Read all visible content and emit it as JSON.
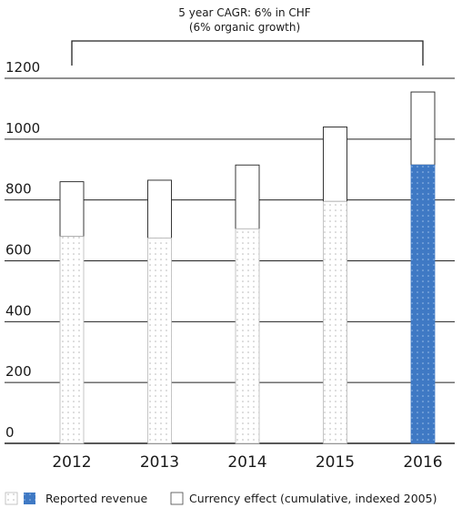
{
  "chart_data": {
    "type": "bar",
    "categories": [
      "2012",
      "2013",
      "2014",
      "2015",
      "2016"
    ],
    "series": [
      {
        "name": "Reported revenue",
        "values": [
          680,
          675,
          705,
          795,
          915
        ]
      },
      {
        "name": "Currency effect (cumulative, indexed 2005)",
        "values": [
          180,
          190,
          210,
          245,
          240
        ]
      }
    ],
    "stacked": true,
    "highlight_category": "2016",
    "y_ticks": [
      0,
      200,
      400,
      600,
      800,
      1000,
      1200
    ],
    "ylim": [
      0,
      1200
    ],
    "grid": true,
    "title": "",
    "xlabel": "",
    "ylabel": "",
    "annotation": {
      "line1": "5 year CAGR: 6% in CHF",
      "line2": "(6% organic growth)",
      "from": "2012",
      "to": "2016"
    },
    "legend": {
      "placement": "bottom",
      "reported_label": "Reported revenue",
      "currency_label": "Currency effect (cumulative, indexed 2005)"
    },
    "colors": {
      "highlight": "#3f79c4",
      "highlight_dots": "#9cc0ea",
      "dots": "#b8b8b8",
      "outline": "#222222",
      "grid": "#222222"
    }
  }
}
